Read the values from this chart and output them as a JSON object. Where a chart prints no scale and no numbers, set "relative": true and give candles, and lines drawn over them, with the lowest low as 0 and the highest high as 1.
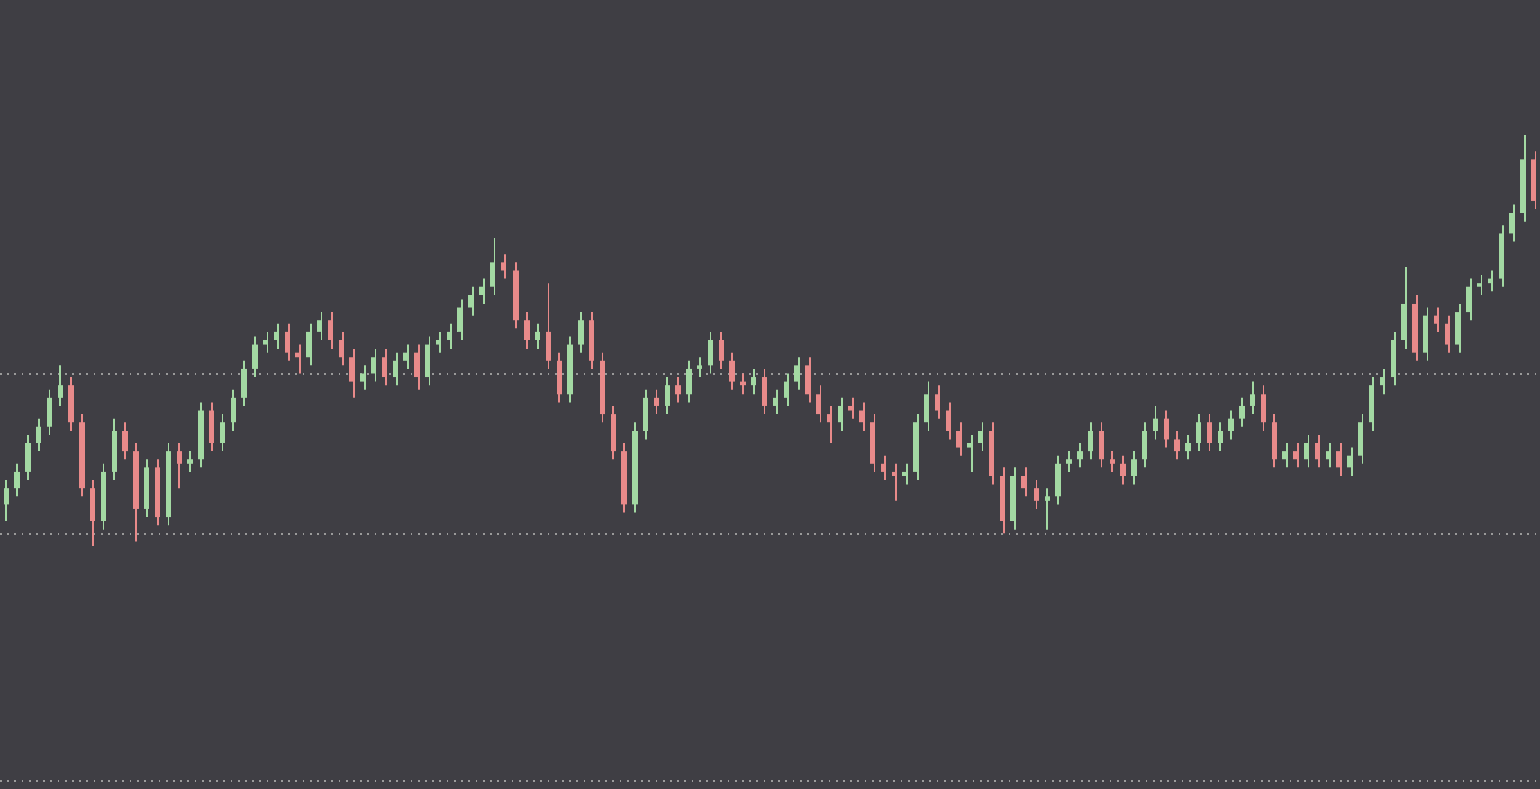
{
  "chart_data": {
    "type": "candlestick",
    "relative": true,
    "categories": [
      null,
      null,
      null,
      null,
      null,
      null,
      null,
      null,
      null,
      null,
      null,
      null,
      null,
      null,
      null,
      null,
      null,
      null,
      null,
      null,
      null,
      null,
      null,
      null,
      null,
      null,
      null,
      null,
      null,
      null,
      null,
      null,
      null,
      null,
      null,
      null,
      null,
      null,
      null,
      null,
      null,
      null,
      null,
      null,
      null,
      null,
      null,
      null,
      null,
      null,
      null,
      null,
      null,
      null,
      null,
      null,
      null,
      null,
      null,
      null,
      null,
      null,
      null,
      null,
      null,
      null,
      null,
      null,
      null,
      null,
      null,
      null,
      null,
      null,
      null,
      null,
      null,
      null,
      null,
      null,
      null,
      null,
      null,
      null,
      null,
      null,
      null,
      null,
      null,
      null,
      null,
      null,
      null,
      null,
      null,
      null,
      null,
      null,
      null,
      null,
      null,
      null,
      null,
      null,
      null,
      null,
      null,
      null,
      null,
      null,
      null,
      null,
      null,
      null,
      null,
      null,
      null,
      null,
      null,
      null,
      null,
      null,
      null,
      null,
      null,
      null,
      null,
      null,
      null,
      null,
      null,
      null,
      null,
      null,
      null,
      null,
      null,
      null,
      null,
      null,
      null,
      null
    ],
    "ohlc": [
      [
        0.1,
        0.16,
        0.06,
        0.14
      ],
      [
        0.14,
        0.2,
        0.12,
        0.18
      ],
      [
        0.18,
        0.27,
        0.16,
        0.25
      ],
      [
        0.25,
        0.31,
        0.23,
        0.29
      ],
      [
        0.29,
        0.38,
        0.27,
        0.36
      ],
      [
        0.36,
        0.44,
        0.34,
        0.39
      ],
      [
        0.39,
        0.41,
        0.28,
        0.3
      ],
      [
        0.3,
        0.32,
        0.12,
        0.14
      ],
      [
        0.14,
        0.16,
        0.0,
        0.06
      ],
      [
        0.06,
        0.2,
        0.04,
        0.18
      ],
      [
        0.18,
        0.31,
        0.16,
        0.28
      ],
      [
        0.28,
        0.3,
        0.21,
        0.23
      ],
      [
        0.23,
        0.25,
        0.01,
        0.09
      ],
      [
        0.09,
        0.21,
        0.07,
        0.19
      ],
      [
        0.19,
        0.21,
        0.05,
        0.07
      ],
      [
        0.07,
        0.25,
        0.05,
        0.23
      ],
      [
        0.23,
        0.25,
        0.14,
        0.2
      ],
      [
        0.2,
        0.23,
        0.18,
        0.21
      ],
      [
        0.21,
        0.35,
        0.19,
        0.33
      ],
      [
        0.33,
        0.35,
        0.23,
        0.25
      ],
      [
        0.25,
        0.32,
        0.23,
        0.3
      ],
      [
        0.3,
        0.38,
        0.28,
        0.36
      ],
      [
        0.36,
        0.45,
        0.34,
        0.43
      ],
      [
        0.43,
        0.51,
        0.41,
        0.49
      ],
      [
        0.49,
        0.52,
        0.47,
        0.5
      ],
      [
        0.5,
        0.54,
        0.48,
        0.52
      ],
      [
        0.52,
        0.54,
        0.45,
        0.47
      ],
      [
        0.47,
        0.49,
        0.42,
        0.46
      ],
      [
        0.46,
        0.54,
        0.44,
        0.52
      ],
      [
        0.52,
        0.57,
        0.5,
        0.55
      ],
      [
        0.55,
        0.57,
        0.48,
        0.5
      ],
      [
        0.5,
        0.52,
        0.44,
        0.46
      ],
      [
        0.46,
        0.48,
        0.36,
        0.4
      ],
      [
        0.4,
        0.44,
        0.38,
        0.42
      ],
      [
        0.42,
        0.48,
        0.4,
        0.46
      ],
      [
        0.46,
        0.48,
        0.39,
        0.41
      ],
      [
        0.41,
        0.47,
        0.39,
        0.45
      ],
      [
        0.45,
        0.49,
        0.43,
        0.47
      ],
      [
        0.47,
        0.49,
        0.38,
        0.41
      ],
      [
        0.41,
        0.51,
        0.39,
        0.49
      ],
      [
        0.49,
        0.52,
        0.47,
        0.5
      ],
      [
        0.5,
        0.54,
        0.48,
        0.52
      ],
      [
        0.52,
        0.6,
        0.5,
        0.58
      ],
      [
        0.58,
        0.63,
        0.56,
        0.61
      ],
      [
        0.61,
        0.65,
        0.59,
        0.63
      ],
      [
        0.63,
        0.75,
        0.61,
        0.69
      ],
      [
        0.69,
        0.71,
        0.65,
        0.67
      ],
      [
        0.67,
        0.69,
        0.53,
        0.55
      ],
      [
        0.55,
        0.57,
        0.48,
        0.5
      ],
      [
        0.5,
        0.54,
        0.48,
        0.52
      ],
      [
        0.52,
        0.64,
        0.43,
        0.45
      ],
      [
        0.45,
        0.47,
        0.35,
        0.37
      ],
      [
        0.37,
        0.51,
        0.35,
        0.49
      ],
      [
        0.49,
        0.57,
        0.47,
        0.55
      ],
      [
        0.55,
        0.57,
        0.43,
        0.45
      ],
      [
        0.45,
        0.47,
        0.3,
        0.32
      ],
      [
        0.32,
        0.34,
        0.21,
        0.23
      ],
      [
        0.23,
        0.25,
        0.08,
        0.1
      ],
      [
        0.1,
        0.3,
        0.08,
        0.28
      ],
      [
        0.28,
        0.38,
        0.26,
        0.36
      ],
      [
        0.36,
        0.38,
        0.32,
        0.34
      ],
      [
        0.34,
        0.41,
        0.32,
        0.39
      ],
      [
        0.39,
        0.41,
        0.35,
        0.37
      ],
      [
        0.37,
        0.45,
        0.35,
        0.43
      ],
      [
        0.43,
        0.46,
        0.41,
        0.44
      ],
      [
        0.44,
        0.52,
        0.42,
        0.5
      ],
      [
        0.5,
        0.52,
        0.43,
        0.45
      ],
      [
        0.45,
        0.47,
        0.38,
        0.4
      ],
      [
        0.4,
        0.42,
        0.37,
        0.39
      ],
      [
        0.39,
        0.43,
        0.37,
        0.41
      ],
      [
        0.41,
        0.43,
        0.32,
        0.34
      ],
      [
        0.34,
        0.38,
        0.32,
        0.36
      ],
      [
        0.36,
        0.42,
        0.34,
        0.4
      ],
      [
        0.4,
        0.46,
        0.38,
        0.44
      ],
      [
        0.44,
        0.46,
        0.35,
        0.37
      ],
      [
        0.37,
        0.39,
        0.3,
        0.32
      ],
      [
        0.32,
        0.34,
        0.25,
        0.3
      ],
      [
        0.3,
        0.36,
        0.28,
        0.34
      ],
      [
        0.34,
        0.36,
        0.31,
        0.33
      ],
      [
        0.33,
        0.35,
        0.28,
        0.3
      ],
      [
        0.3,
        0.32,
        0.18,
        0.2
      ],
      [
        0.2,
        0.22,
        0.16,
        0.18
      ],
      [
        0.18,
        0.2,
        0.11,
        0.17
      ],
      [
        0.17,
        0.2,
        0.15,
        0.18
      ],
      [
        0.18,
        0.32,
        0.16,
        0.3
      ],
      [
        0.3,
        0.4,
        0.28,
        0.37
      ],
      [
        0.37,
        0.39,
        0.31,
        0.33
      ],
      [
        0.33,
        0.35,
        0.26,
        0.28
      ],
      [
        0.28,
        0.3,
        0.22,
        0.24
      ],
      [
        0.24,
        0.27,
        0.18,
        0.25
      ],
      [
        0.25,
        0.3,
        0.23,
        0.28
      ],
      [
        0.28,
        0.3,
        0.15,
        0.17
      ],
      [
        0.17,
        0.19,
        0.03,
        0.06
      ],
      [
        0.06,
        0.19,
        0.04,
        0.17
      ],
      [
        0.17,
        0.19,
        0.12,
        0.14
      ],
      [
        0.14,
        0.16,
        0.09,
        0.11
      ],
      [
        0.11,
        0.14,
        0.04,
        0.12
      ],
      [
        0.12,
        0.22,
        0.1,
        0.2
      ],
      [
        0.2,
        0.23,
        0.18,
        0.21
      ],
      [
        0.21,
        0.25,
        0.19,
        0.23
      ],
      [
        0.23,
        0.3,
        0.21,
        0.28
      ],
      [
        0.28,
        0.3,
        0.19,
        0.21
      ],
      [
        0.21,
        0.23,
        0.18,
        0.2
      ],
      [
        0.2,
        0.22,
        0.15,
        0.17
      ],
      [
        0.17,
        0.23,
        0.15,
        0.21
      ],
      [
        0.21,
        0.3,
        0.19,
        0.28
      ],
      [
        0.28,
        0.34,
        0.26,
        0.31
      ],
      [
        0.31,
        0.33,
        0.24,
        0.26
      ],
      [
        0.26,
        0.28,
        0.21,
        0.23
      ],
      [
        0.23,
        0.27,
        0.21,
        0.25
      ],
      [
        0.25,
        0.32,
        0.23,
        0.3
      ],
      [
        0.3,
        0.32,
        0.23,
        0.25
      ],
      [
        0.25,
        0.3,
        0.23,
        0.28
      ],
      [
        0.28,
        0.33,
        0.26,
        0.31
      ],
      [
        0.31,
        0.36,
        0.29,
        0.34
      ],
      [
        0.34,
        0.4,
        0.32,
        0.37
      ],
      [
        0.37,
        0.39,
        0.28,
        0.3
      ],
      [
        0.3,
        0.32,
        0.19,
        0.21
      ],
      [
        0.21,
        0.25,
        0.19,
        0.23
      ],
      [
        0.23,
        0.25,
        0.19,
        0.21
      ],
      [
        0.21,
        0.27,
        0.19,
        0.25
      ],
      [
        0.25,
        0.27,
        0.19,
        0.21
      ],
      [
        0.21,
        0.25,
        0.19,
        0.23
      ],
      [
        0.23,
        0.25,
        0.17,
        0.19
      ],
      [
        0.19,
        0.24,
        0.17,
        0.22
      ],
      [
        0.22,
        0.32,
        0.2,
        0.3
      ],
      [
        0.3,
        0.41,
        0.28,
        0.39
      ],
      [
        0.39,
        0.43,
        0.37,
        0.41
      ],
      [
        0.41,
        0.52,
        0.39,
        0.5
      ],
      [
        0.5,
        0.68,
        0.48,
        0.59
      ],
      [
        0.59,
        0.61,
        0.45,
        0.47
      ],
      [
        0.47,
        0.58,
        0.45,
        0.56
      ],
      [
        0.56,
        0.58,
        0.52,
        0.54
      ],
      [
        0.54,
        0.56,
        0.47,
        0.49
      ],
      [
        0.49,
        0.59,
        0.47,
        0.57
      ],
      [
        0.57,
        0.65,
        0.55,
        0.63
      ],
      [
        0.63,
        0.66,
        0.61,
        0.64
      ],
      [
        0.64,
        0.67,
        0.62,
        0.65
      ],
      [
        0.65,
        0.78,
        0.63,
        0.76
      ],
      [
        0.76,
        0.83,
        0.74,
        0.81
      ],
      [
        0.81,
        1.0,
        0.79,
        0.94
      ],
      [
        0.94,
        0.96,
        0.82,
        0.84
      ]
    ],
    "colors": [
      "#a3d9a3",
      "#a3d9a3",
      "#a3d9a3",
      "#a3d9a3",
      "#a3d9a3",
      "#a3d9a3",
      "#e88a8a",
      "#e88a8a",
      "#e88a8a",
      "#a3d9a3",
      "#a3d9a3",
      "#e88a8a",
      "#e88a8a",
      "#a3d9a3",
      "#e88a8a",
      "#a3d9a3",
      "#e88a8a",
      "#a3d9a3",
      "#a3d9a3",
      "#e88a8a",
      "#a3d9a3",
      "#a3d9a3",
      "#a3d9a3",
      "#a3d9a3",
      "#a3d9a3",
      "#a3d9a3",
      "#e88a8a",
      "#e88a8a",
      "#a3d9a3",
      "#a3d9a3",
      "#e88a8a",
      "#e88a8a",
      "#e88a8a",
      "#a3d9a3",
      "#a3d9a3",
      "#e88a8a",
      "#a3d9a3",
      "#a3d9a3",
      "#e88a8a",
      "#a3d9a3",
      "#a3d9a3",
      "#a3d9a3",
      "#a3d9a3",
      "#a3d9a3",
      "#a3d9a3",
      "#a3d9a3",
      "#e88a8a",
      "#e88a8a",
      "#e88a8a",
      "#a3d9a3",
      "#e88a8a",
      "#e88a8a",
      "#a3d9a3",
      "#a3d9a3",
      "#e88a8a",
      "#e88a8a",
      "#e88a8a",
      "#e88a8a",
      "#a3d9a3",
      "#a3d9a3",
      "#e88a8a",
      "#a3d9a3",
      "#e88a8a",
      "#a3d9a3",
      "#a3d9a3",
      "#a3d9a3",
      "#e88a8a",
      "#e88a8a",
      "#e88a8a",
      "#a3d9a3",
      "#e88a8a",
      "#a3d9a3",
      "#a3d9a3",
      "#a3d9a3",
      "#e88a8a",
      "#e88a8a",
      "#e88a8a",
      "#a3d9a3",
      "#e88a8a",
      "#e88a8a",
      "#e88a8a",
      "#e88a8a",
      "#e88a8a",
      "#a3d9a3",
      "#a3d9a3",
      "#a3d9a3",
      "#e88a8a",
      "#e88a8a",
      "#e88a8a",
      "#a3d9a3",
      "#a3d9a3",
      "#e88a8a",
      "#e88a8a",
      "#a3d9a3",
      "#e88a8a",
      "#e88a8a",
      "#a3d9a3",
      "#a3d9a3",
      "#a3d9a3",
      "#a3d9a3",
      "#a3d9a3",
      "#e88a8a",
      "#e88a8a",
      "#e88a8a",
      "#a3d9a3",
      "#a3d9a3",
      "#a3d9a3",
      "#e88a8a",
      "#e88a8a",
      "#a3d9a3",
      "#a3d9a3",
      "#e88a8a",
      "#a3d9a3",
      "#a3d9a3",
      "#a3d9a3",
      "#a3d9a3",
      "#e88a8a",
      "#e88a8a",
      "#a3d9a3",
      "#e88a8a",
      "#a3d9a3",
      "#e88a8a",
      "#a3d9a3",
      "#e88a8a",
      "#a3d9a3",
      "#a3d9a3",
      "#a3d9a3",
      "#a3d9a3",
      "#a3d9a3",
      "#a3d9a3",
      "#e88a8a",
      "#a3d9a3",
      "#e88a8a",
      "#e88a8a",
      "#a3d9a3",
      "#a3d9a3",
      "#a3d9a3",
      "#a3d9a3",
      "#a3d9a3",
      "#a3d9a3",
      "#a3d9a3",
      "#e88a8a"
    ],
    "ref_lines": [
      {
        "axis": "y",
        "value": 0.42,
        "color": "#9a9a9a",
        "line_style": "dotted"
      },
      {
        "axis": "y",
        "value": 0.03,
        "color": "#9a9a9a",
        "line_style": "dotted"
      },
      {
        "axis": "y",
        "value": -0.57,
        "color": "#9a9a9a",
        "line_style": "dotted"
      }
    ]
  }
}
